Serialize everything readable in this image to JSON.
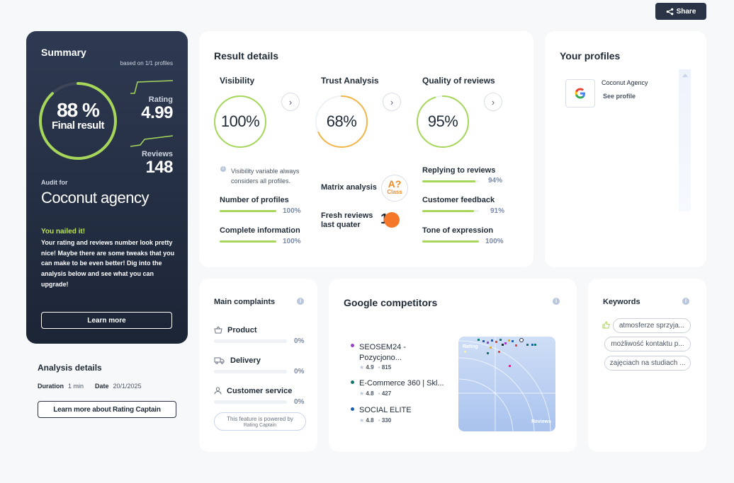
{
  "share_label": "Share",
  "summary": {
    "title": "Summary",
    "based_on": "based on 1/1 profiles",
    "final_percent": "88 %",
    "final_label": "Final result",
    "final_value": 0.88,
    "rating_label": "Rating",
    "rating_value": "4.99",
    "reviews_label": "Reviews",
    "reviews_value": "148",
    "audit_for": "Audit for",
    "company": "Coconut agency",
    "nailed_title": "You nailed it!",
    "nailed_text": "Your rating and reviews number look pretty nice! Maybe there are some tweaks that you can make to be even better! Dig into the analysis below and see what you can upgrade!",
    "learn_more": "Learn more"
  },
  "analysis": {
    "title": "Analysis details",
    "duration_label": "Duration",
    "duration_value": "1 min",
    "date_label": "Date",
    "date_value": "20/1/2025",
    "learn_more_rc": "Learn more about Rating Captain"
  },
  "result": {
    "title": "Result details",
    "visibility": {
      "title": "Visibility",
      "percent": "100%",
      "value": 1.0,
      "color": "#a6d65a",
      "note": "Visibility variable always considers all profiles.",
      "rows": [
        {
          "label": "Number of profiles",
          "pct": "100%",
          "value": 1.0
        },
        {
          "label": "Complete information",
          "pct": "100%",
          "value": 1.0
        }
      ]
    },
    "trust": {
      "title": "Trust Analysis",
      "percent": "68%",
      "value": 0.68,
      "color": "#f2b54a",
      "matrix_label": "Matrix analysis",
      "matrix_badge": "A?",
      "matrix_class": "Class",
      "fresh_label": "Fresh reviews last quater",
      "fresh_value": "1"
    },
    "quality": {
      "title": "Quality of reviews",
      "percent": "95%",
      "value": 0.95,
      "color": "#a6d65a",
      "rows": [
        {
          "label": "Replying to reviews",
          "pct": "94%",
          "value": 0.94
        },
        {
          "label": "Customer feedback",
          "pct": "91%",
          "value": 0.91
        },
        {
          "label": "Tone of expression",
          "pct": "100%",
          "value": 1.0
        }
      ]
    }
  },
  "profiles": {
    "title": "Your profiles",
    "items": [
      {
        "name": "Coconut Agency",
        "link": "See profile",
        "icon": "google-icon"
      }
    ]
  },
  "complaints": {
    "title": "Main complaints",
    "items": [
      {
        "label": "Product",
        "pct": "0%",
        "icon": "basket-icon"
      },
      {
        "label": "Delivery",
        "pct": "0%",
        "icon": "truck-icon"
      },
      {
        "label": "Customer service",
        "pct": "0%",
        "icon": "person-icon"
      }
    ],
    "powered_by": "This feature is powered by",
    "powered_brand": "Rating Captain"
  },
  "competitors": {
    "title": "Google competitors",
    "items": [
      {
        "name": "SEOSEM24 - Pozycjono...",
        "rating": "4.9",
        "reviews": "815",
        "color": "#9b3fc9"
      },
      {
        "name": "E-Commerce 360 | Skl...",
        "rating": "4.8",
        "reviews": "427",
        "color": "#12766b"
      },
      {
        "name": "SOCIAL ELITE",
        "rating": "4.8",
        "reviews": "330",
        "color": "#1a5fb4"
      }
    ],
    "chart_y_label": "Rating",
    "chart_x_label": "Reviews"
  },
  "keywords": {
    "title": "Keywords",
    "items": [
      "atmosferze sprzyja...",
      "możliwość kontaktu p...",
      "zajęciach na studiach ..."
    ]
  }
}
